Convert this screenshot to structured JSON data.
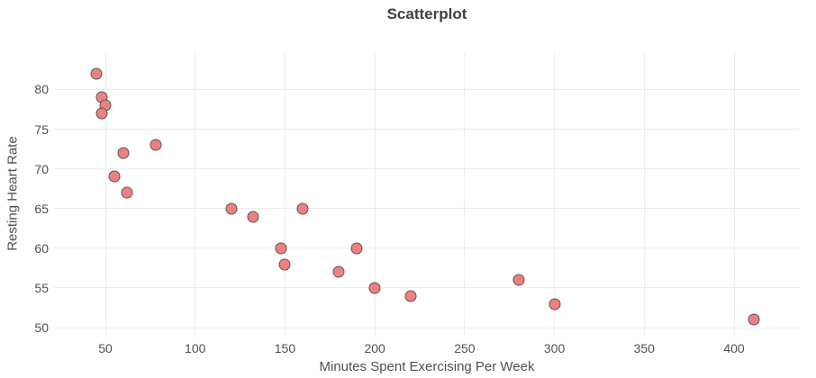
{
  "chart_data": {
    "type": "scatter",
    "title": "Scatterplot",
    "xlabel": "Minutes Spent Exercising Per Week",
    "ylabel": "Resting Heart Rate",
    "x": [
      45,
      48,
      50,
      48,
      55,
      60,
      62,
      78,
      120,
      132,
      148,
      150,
      160,
      180,
      190,
      200,
      220,
      280,
      300,
      411
    ],
    "y": [
      82,
      79,
      78,
      77,
      69,
      72,
      67,
      73,
      65,
      64,
      60,
      58,
      65,
      57,
      60,
      55,
      54,
      56,
      53,
      51
    ],
    "xlim": [
      21.4,
      436.6
    ],
    "ylim": [
      49.1,
      84.7
    ],
    "x_ticks": [
      50,
      100,
      150,
      200,
      250,
      300,
      350,
      400
    ],
    "y_ticks": [
      50,
      55,
      60,
      65,
      70,
      75,
      80
    ],
    "grid": true,
    "legend": false,
    "marker_fill": "#f08080",
    "marker_stroke": "#565656",
    "grid_color": "#ebedee",
    "tick_color": "#4c5055",
    "title_color": "#3d4044",
    "background": "#ffffff"
  }
}
